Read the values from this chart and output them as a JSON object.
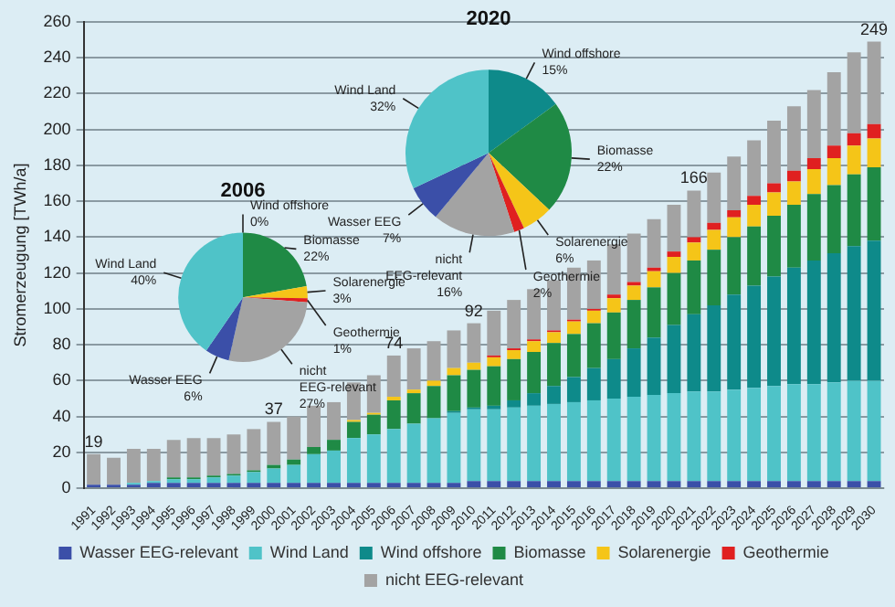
{
  "chart_data": [
    {
      "type": "bar",
      "stacked": true,
      "ylabel": "Stromerzeugung [TWh/a]",
      "ylim": [
        0,
        260
      ],
      "yticks": [
        0,
        20,
        40,
        60,
        80,
        100,
        120,
        140,
        160,
        180,
        200,
        220,
        240,
        260
      ],
      "grid": "y",
      "legend": "bottom",
      "categories": [
        "1991",
        "1992",
        "1993",
        "1994",
        "1995",
        "1996",
        "1997",
        "1998",
        "1999",
        "2000",
        "2001",
        "2002",
        "2003",
        "2004",
        "2005",
        "2006",
        "2007",
        "2008",
        "2009",
        "2010",
        "2011",
        "2012",
        "2013",
        "2014",
        "2015",
        "2016",
        "2017",
        "2018",
        "2019",
        "2020",
        "2021",
        "2022",
        "2023",
        "2024",
        "2025",
        "2026",
        "2027",
        "2028",
        "2029",
        "2030"
      ],
      "series": [
        {
          "name": "Wasser EEG-relevant",
          "color": "#3b4fa8",
          "values": [
            2,
            2,
            2,
            3,
            3,
            3,
            3,
            3,
            3,
            3,
            3,
            3,
            3,
            3,
            3,
            3,
            3,
            3,
            3,
            4,
            4,
            4,
            4,
            4,
            4,
            4,
            4,
            4,
            4,
            4,
            4,
            4,
            4,
            4,
            4,
            4,
            4,
            4,
            4,
            4
          ]
        },
        {
          "name": "Wind Land",
          "color": "#4fc3c8",
          "values": [
            0,
            0,
            1,
            1,
            2,
            2,
            3,
            4,
            6,
            8,
            10,
            16,
            18,
            25,
            27,
            30,
            33,
            36,
            39,
            40,
            40,
            41,
            42,
            43,
            44,
            45,
            46,
            47,
            48,
            49,
            50,
            50,
            51,
            52,
            53,
            54,
            54,
            55,
            56,
            56
          ]
        },
        {
          "name": "Wind offshore",
          "color": "#0e8a8a",
          "values": [
            0,
            0,
            0,
            0,
            0,
            0,
            0,
            0,
            0,
            0,
            0,
            0,
            0,
            0,
            0,
            0,
            0,
            0,
            1,
            1,
            2,
            4,
            7,
            10,
            14,
            18,
            22,
            27,
            32,
            38,
            43,
            48,
            53,
            57,
            61,
            65,
            69,
            72,
            75,
            78
          ]
        },
        {
          "name": "Biomasse",
          "color": "#1f8a45",
          "values": [
            0,
            0,
            0,
            0,
            1,
            1,
            1,
            1,
            1,
            2,
            3,
            4,
            6,
            9,
            11,
            16,
            17,
            18,
            20,
            21,
            22,
            23,
            23,
            24,
            24,
            25,
            26,
            27,
            28,
            29,
            30,
            31,
            32,
            33,
            34,
            35,
            37,
            38,
            40,
            41
          ]
        },
        {
          "name": "Solarenergie",
          "color": "#f5c518",
          "values": [
            0,
            0,
            0,
            0,
            0,
            0,
            0,
            0,
            0,
            0,
            0,
            0,
            0,
            1,
            1,
            2,
            2,
            3,
            4,
            4,
            5,
            5,
            6,
            6,
            7,
            7,
            8,
            8,
            9,
            9,
            10,
            11,
            11,
            12,
            13,
            13,
            14,
            15,
            16,
            16
          ]
        },
        {
          "name": "Geothermie",
          "color": "#e02020",
          "values": [
            0,
            0,
            0,
            0,
            0,
            0,
            0,
            0,
            0,
            0,
            0,
            0,
            0,
            0,
            0,
            0,
            0,
            0,
            0,
            0,
            1,
            1,
            1,
            1,
            1,
            1,
            2,
            2,
            2,
            3,
            3,
            4,
            4,
            5,
            5,
            6,
            6,
            7,
            7,
            8
          ]
        },
        {
          "name": "nicht EEG-relevant",
          "color": "#a3a3a3",
          "values": [
            17,
            15,
            19,
            18,
            21,
            22,
            21,
            22,
            23,
            24,
            24,
            23,
            21,
            21,
            21,
            23,
            23,
            22,
            21,
            22,
            25,
            27,
            28,
            28,
            29,
            27,
            28,
            27,
            27,
            26,
            26,
            28,
            30,
            31,
            35,
            36,
            38,
            41,
            45,
            46
          ]
        }
      ],
      "annotations": [
        {
          "text": "19",
          "x": "1991",
          "y": 19
        },
        {
          "text": "37",
          "x": "2000",
          "y": 37
        },
        {
          "text": "74",
          "x": "2006",
          "y": 74
        },
        {
          "text": "92",
          "x": "2010",
          "y": 92
        },
        {
          "text": "166",
          "x": "2021",
          "y": 166
        },
        {
          "text": "249",
          "x": "2030",
          "y": 249
        }
      ]
    },
    {
      "type": "pie",
      "title": "2006",
      "categories": [
        "Wind offshore",
        "Biomasse",
        "Solarenergie",
        "Geothermie",
        "nicht EEG-relevant",
        "Wasser EEG",
        "Wind Land"
      ],
      "values": [
        0,
        22,
        3,
        1,
        27,
        6,
        40
      ],
      "colors": [
        "#0e8a8a",
        "#1f8a45",
        "#f5c518",
        "#e02020",
        "#a3a3a3",
        "#3b4fa8",
        "#4fc3c8"
      ],
      "value_labels": [
        "0%",
        "22%",
        "3%",
        "1%",
        "27%",
        "6%",
        "40%"
      ]
    },
    {
      "type": "pie",
      "title": "2020",
      "categories": [
        "Wind offshore",
        "Biomasse",
        "Solarenergie",
        "Geothermie",
        "nicht EEG-relevant",
        "Wasser EEG",
        "Wind Land"
      ],
      "values": [
        15,
        22,
        6,
        2,
        16,
        7,
        32
      ],
      "colors": [
        "#0e8a8a",
        "#1f8a45",
        "#f5c518",
        "#e02020",
        "#a3a3a3",
        "#3b4fa8",
        "#4fc3c8"
      ],
      "value_labels": [
        "15%",
        "22%",
        "6%",
        "2%",
        "16%",
        "7%",
        "32%"
      ]
    }
  ]
}
